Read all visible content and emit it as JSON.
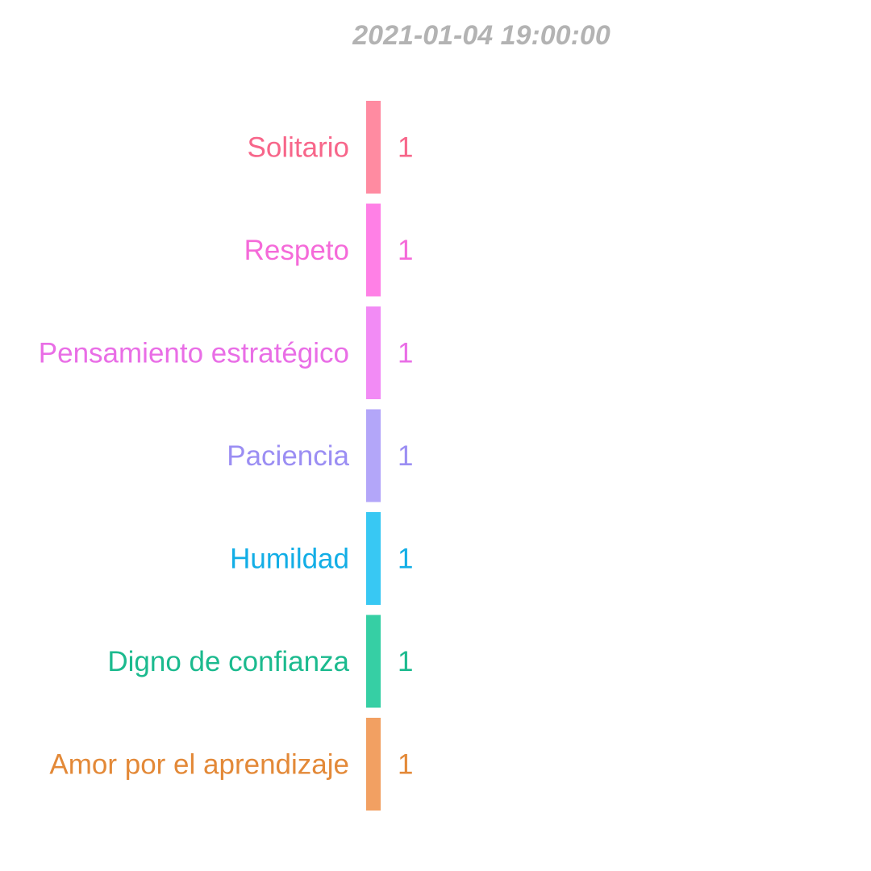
{
  "chart_data": {
    "type": "bar",
    "orientation": "horizontal",
    "title": "2021-01-04 19:00:00",
    "xlabel": "",
    "ylabel": "",
    "grid": false,
    "legend": "none",
    "xlim": [
      0,
      28
    ],
    "categories": [
      "Solitario",
      "Respeto",
      "Pensamiento estratégico",
      "Paciencia",
      "Humildad",
      "Digno de confianza",
      "Amor por el aprendizaje"
    ],
    "values": [
      1,
      1,
      1,
      1,
      1,
      1,
      1
    ],
    "value_labels": [
      "1",
      "1",
      "1",
      "1",
      "1",
      "1",
      "1"
    ],
    "bar_colors": [
      "#ff8ba1",
      "#ff80e6",
      "#f28bf5",
      "#b3a6f9",
      "#38c8f3",
      "#36cfa4",
      "#f2a062"
    ],
    "label_colors": [
      "#f7668a",
      "#f56ad9",
      "#e96ee6",
      "#9b8ef3",
      "#12aee6",
      "#1bba8e",
      "#e38938"
    ]
  }
}
